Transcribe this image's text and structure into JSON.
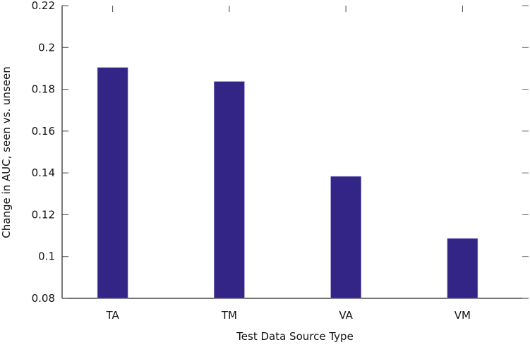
{
  "chart_data": {
    "type": "bar",
    "title": "",
    "xlabel": "Test Data Source Type",
    "ylabel": "Change in AUC, seen vs. unseen",
    "categories": [
      "TA",
      "TM",
      "VA",
      "VM"
    ],
    "values": [
      0.1904,
      0.1837,
      0.1383,
      0.1086
    ],
    "ylim": [
      0.08,
      0.22
    ],
    "yticks": [
      "0.08",
      "0.1",
      "0.12",
      "0.14",
      "0.16",
      "0.18",
      "0.2",
      "0.22"
    ],
    "grid": false,
    "legend": null,
    "bar_color": "#322585",
    "axis_color": "#222222"
  }
}
